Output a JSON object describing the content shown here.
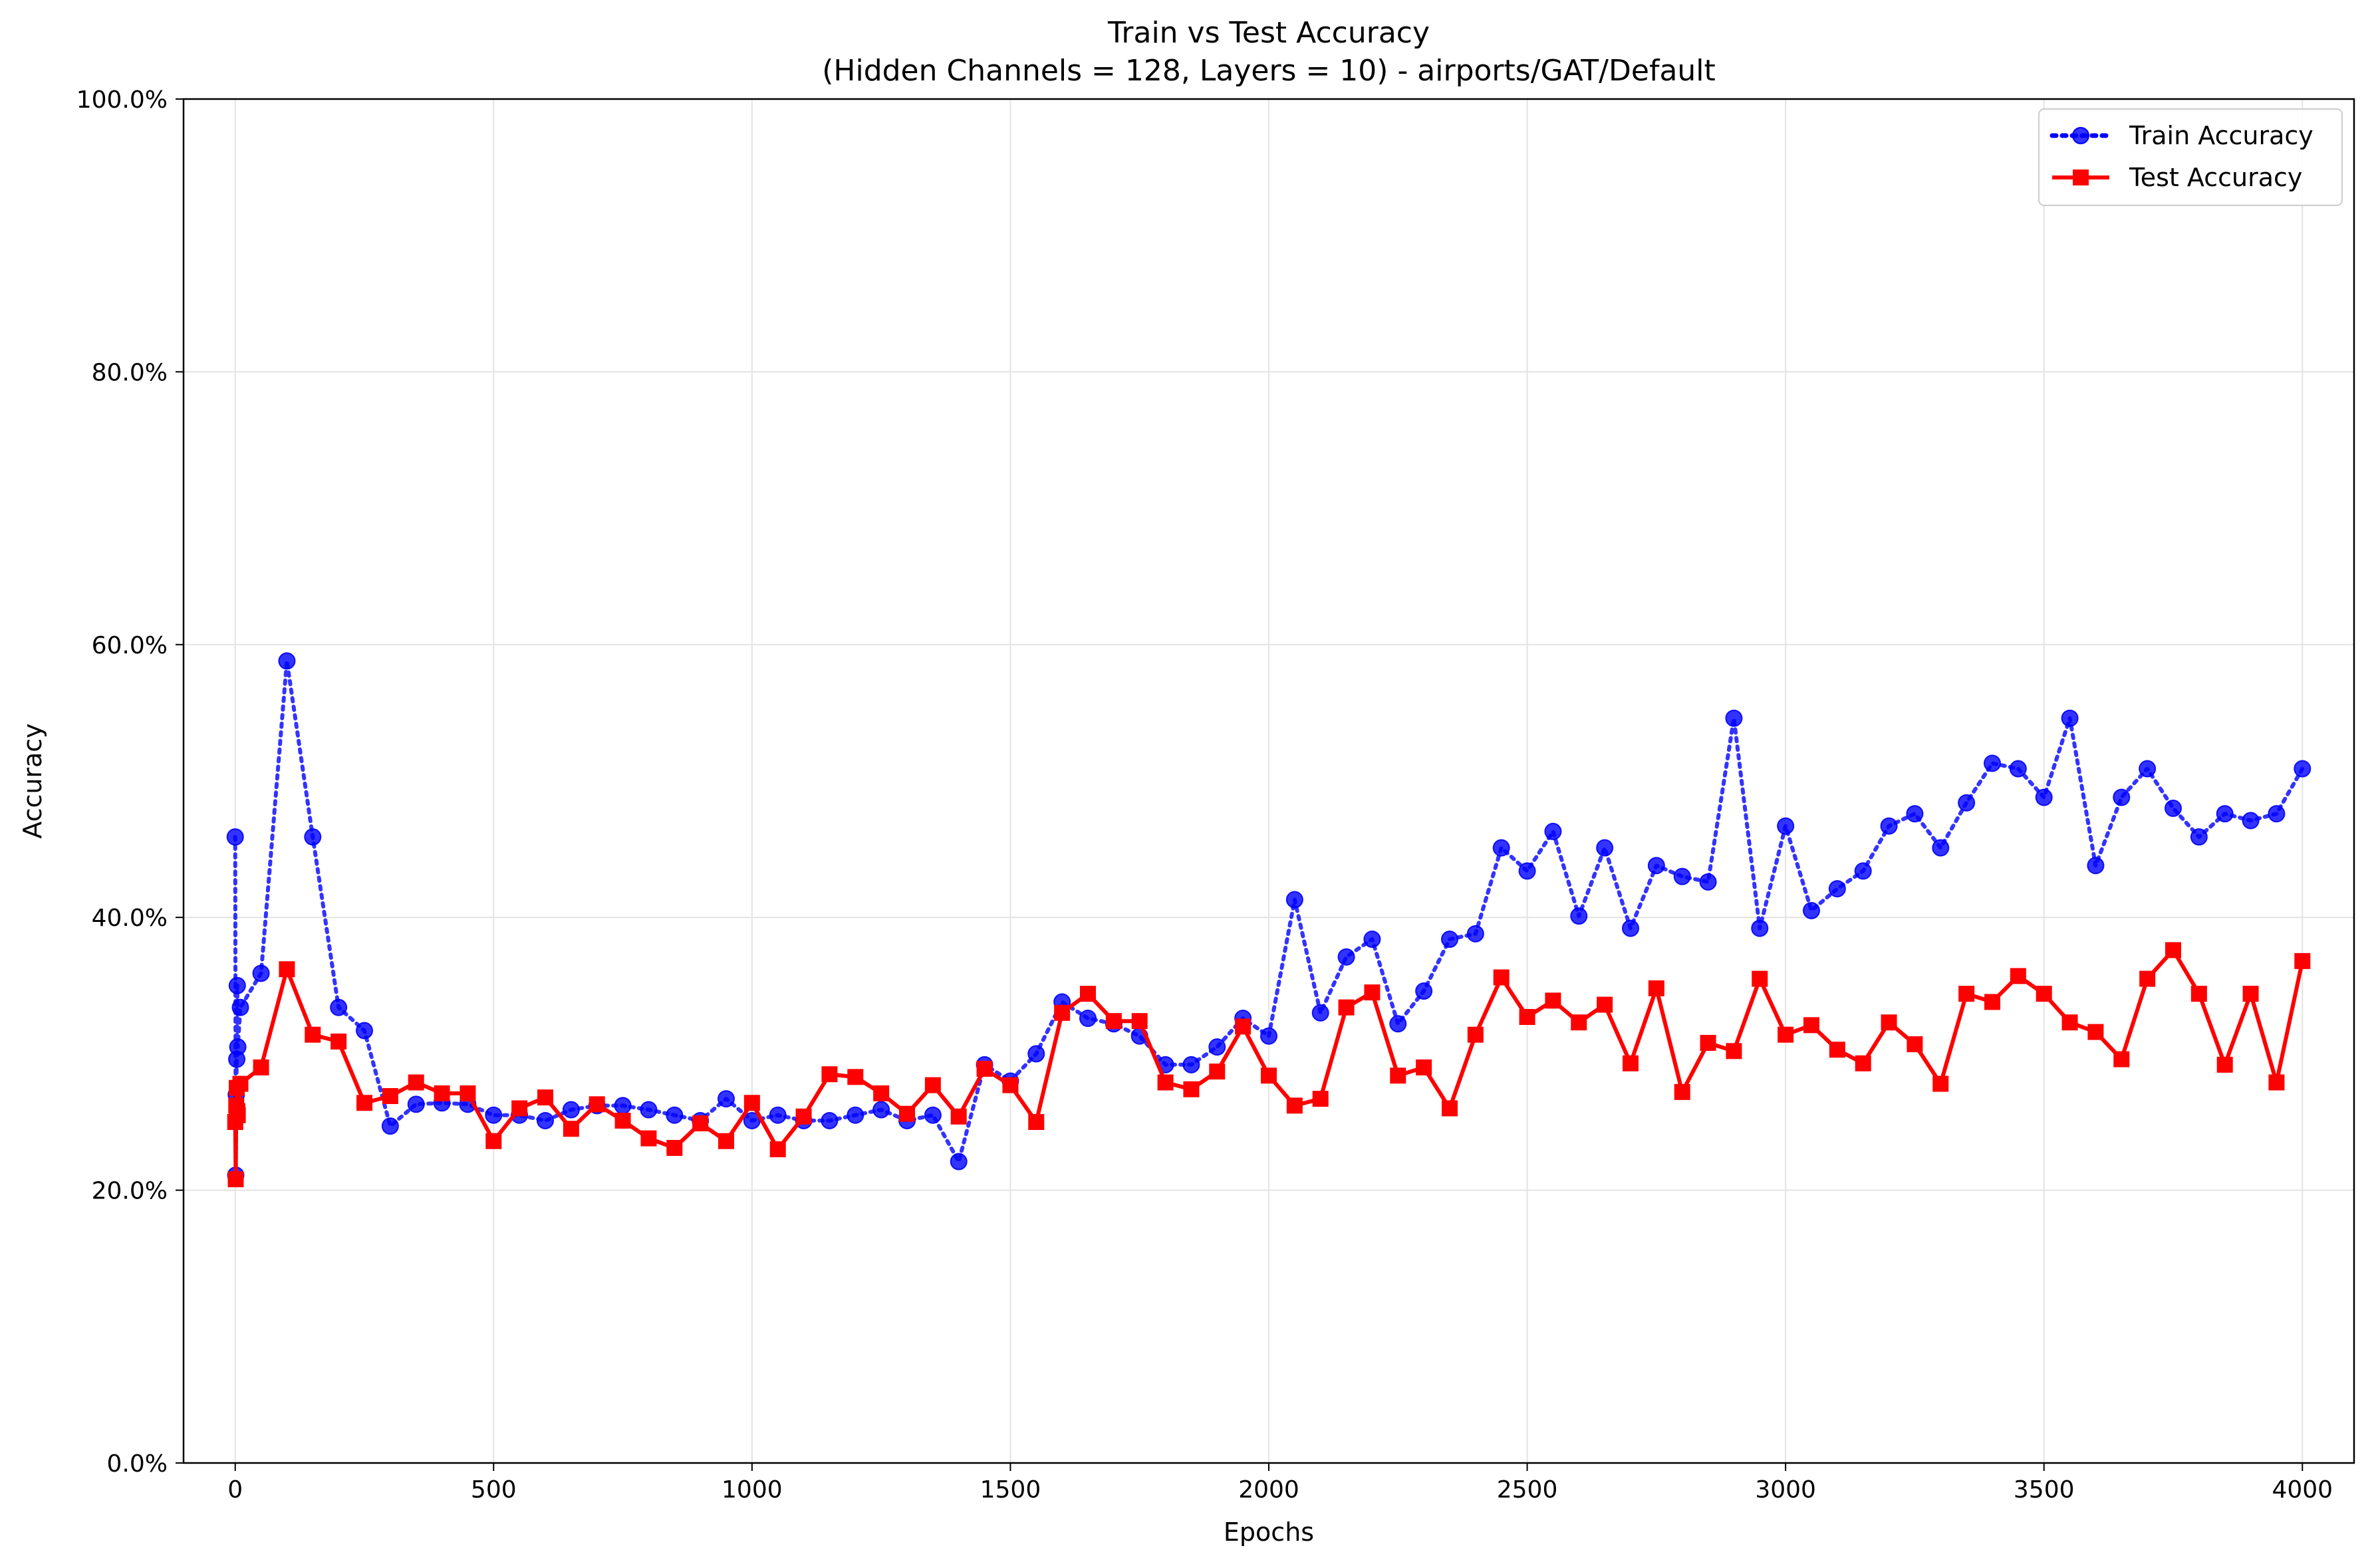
{
  "chart_data": {
    "type": "line",
    "title": "Train vs Test Accuracy",
    "subtitle": "(Hidden Channels = 128, Layers = 10) - airports/GAT/Default",
    "xlabel": "Epochs",
    "ylabel": "Accuracy",
    "xlim": [
      -100,
      4100
    ],
    "ylim": [
      0,
      1
    ],
    "x_ticks": [
      0,
      500,
      1000,
      1500,
      2000,
      2500,
      3000,
      3500,
      4000
    ],
    "x_tick_labels": [
      "0",
      "500",
      "1000",
      "1500",
      "2000",
      "2500",
      "3000",
      "3500",
      "4000"
    ],
    "y_ticks": [
      0,
      0.2,
      0.4,
      0.6,
      0.8,
      1.0
    ],
    "y_tick_labels": [
      "0.0%",
      "20.0%",
      "40.0%",
      "60.0%",
      "80.0%",
      "100.0%"
    ],
    "grid": true,
    "legend_position": "top-right",
    "series": [
      {
        "name": "Train Accuracy",
        "color": "#0000ff",
        "line_style": "dotted",
        "marker": "circle",
        "x": [
          0,
          1,
          2,
          3,
          4,
          5,
          10,
          50,
          100,
          150,
          200,
          250,
          300,
          350,
          400,
          450,
          500,
          550,
          600,
          650,
          700,
          750,
          800,
          850,
          900,
          950,
          1000,
          1050,
          1100,
          1150,
          1200,
          1250,
          1300,
          1350,
          1400,
          1450,
          1500,
          1550,
          1600,
          1650,
          1700,
          1750,
          1800,
          1850,
          1900,
          1950,
          2000,
          2050,
          2100,
          2150,
          2200,
          2250,
          2300,
          2350,
          2400,
          2450,
          2500,
          2550,
          2600,
          2650,
          2700,
          2750,
          2800,
          2850,
          2900,
          2950,
          3000,
          3050,
          3100,
          3150,
          3200,
          3250,
          3300,
          3350,
          3400,
          3450,
          3500,
          3550,
          3600,
          3650,
          3700,
          3750,
          3800,
          3850,
          3900,
          3950,
          4000
        ],
        "y": [
          0.459,
          0.211,
          0.27,
          0.296,
          0.35,
          0.305,
          0.334,
          0.359,
          0.588,
          0.459,
          0.334,
          0.317,
          0.247,
          0.263,
          0.264,
          0.263,
          0.255,
          0.255,
          0.251,
          0.259,
          0.262,
          0.262,
          0.259,
          0.255,
          0.251,
          0.267,
          0.251,
          0.255,
          0.251,
          0.251,
          0.255,
          0.259,
          0.251,
          0.255,
          0.221,
          0.292,
          0.28,
          0.3,
          0.338,
          0.326,
          0.322,
          0.313,
          0.292,
          0.292,
          0.305,
          0.326,
          0.313,
          0.413,
          0.33,
          0.371,
          0.384,
          0.322,
          0.346,
          0.384,
          0.388,
          0.451,
          0.434,
          0.463,
          0.401,
          0.451,
          0.392,
          0.438,
          0.43,
          0.426,
          0.546,
          0.392,
          0.467,
          0.405,
          0.421,
          0.434,
          0.467,
          0.476,
          0.451,
          0.484,
          0.513,
          0.509,
          0.488,
          0.546,
          0.438,
          0.488,
          0.509,
          0.48,
          0.459,
          0.476,
          0.471,
          0.476,
          0.509
        ]
      },
      {
        "name": "Test Accuracy",
        "color": "#ff0000",
        "line_style": "solid",
        "marker": "square",
        "x": [
          0,
          1,
          2,
          3,
          4,
          5,
          10,
          50,
          100,
          150,
          200,
          250,
          300,
          350,
          400,
          450,
          500,
          550,
          600,
          650,
          700,
          750,
          800,
          850,
          900,
          950,
          1000,
          1050,
          1100,
          1150,
          1200,
          1250,
          1300,
          1350,
          1400,
          1450,
          1500,
          1550,
          1600,
          1650,
          1700,
          1750,
          1800,
          1850,
          1900,
          1950,
          2000,
          2050,
          2100,
          2150,
          2200,
          2250,
          2300,
          2350,
          2400,
          2450,
          2500,
          2550,
          2600,
          2650,
          2700,
          2750,
          2800,
          2850,
          2900,
          2950,
          3000,
          3050,
          3100,
          3150,
          3200,
          3250,
          3300,
          3350,
          3400,
          3450,
          3500,
          3550,
          3600,
          3650,
          3700,
          3750,
          3800,
          3850,
          3900,
          3950,
          4000
        ],
        "y": [
          0.25,
          0.208,
          0.262,
          0.275,
          0.258,
          0.255,
          0.278,
          0.29,
          0.362,
          0.314,
          0.309,
          0.264,
          0.269,
          0.279,
          0.271,
          0.271,
          0.236,
          0.26,
          0.268,
          0.245,
          0.263,
          0.251,
          0.238,
          0.231,
          0.249,
          0.236,
          0.264,
          0.23,
          0.254,
          0.285,
          0.283,
          0.271,
          0.256,
          0.277,
          0.254,
          0.289,
          0.277,
          0.25,
          0.33,
          0.344,
          0.324,
          0.324,
          0.279,
          0.274,
          0.287,
          0.32,
          0.284,
          0.262,
          0.267,
          0.334,
          0.345,
          0.284,
          0.29,
          0.26,
          0.314,
          0.356,
          0.327,
          0.339,
          0.323,
          0.336,
          0.293,
          0.348,
          0.272,
          0.308,
          0.302,
          0.355,
          0.314,
          0.321,
          0.303,
          0.293,
          0.323,
          0.307,
          0.278,
          0.344,
          0.338,
          0.357,
          0.344,
          0.323,
          0.316,
          0.296,
          0.355,
          0.376,
          0.344,
          0.292,
          0.344,
          0.279,
          0.368
        ]
      }
    ]
  }
}
